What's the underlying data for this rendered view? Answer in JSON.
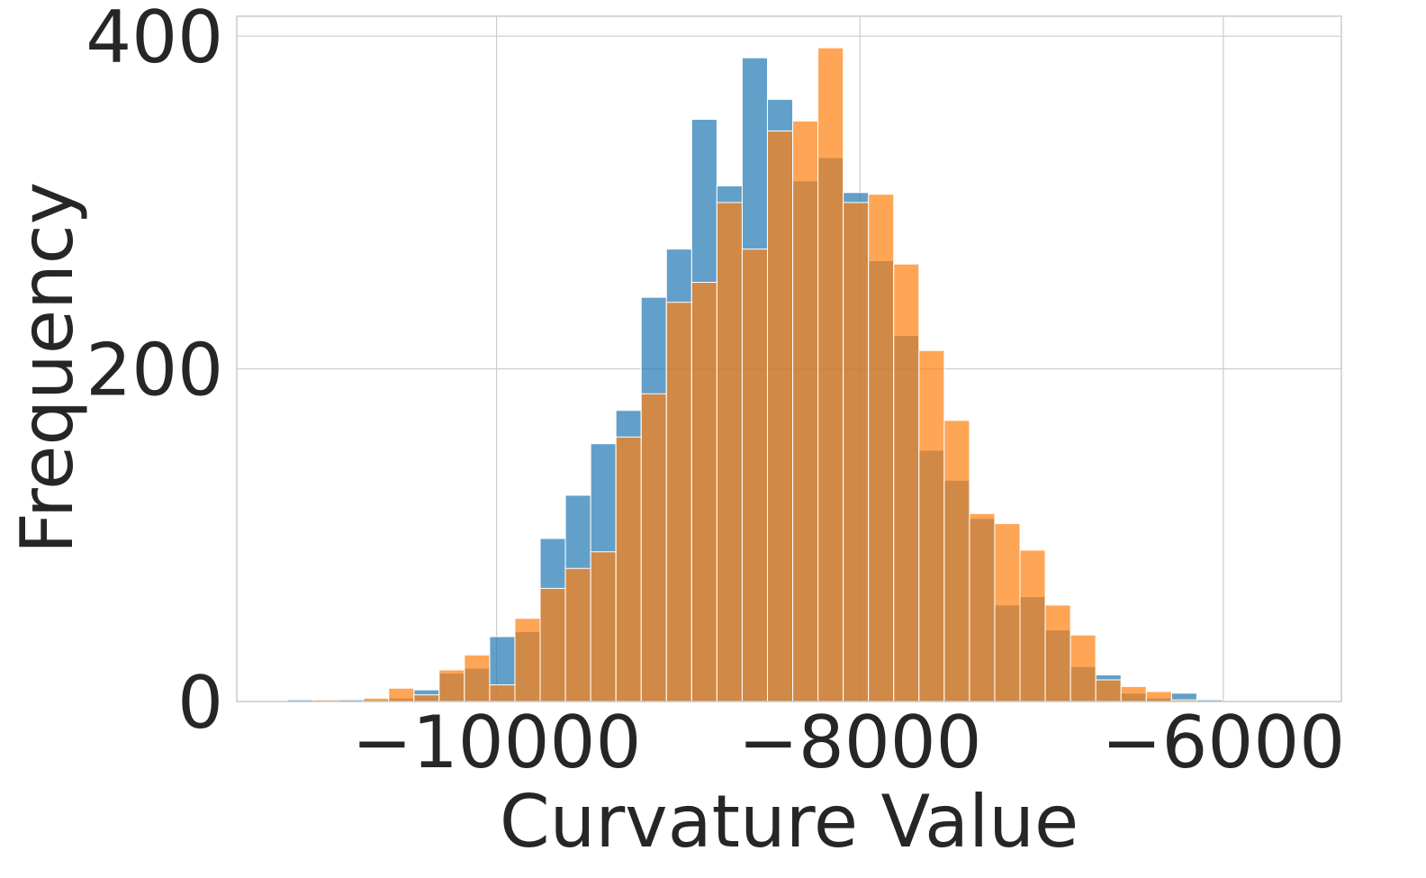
{
  "chart_data": {
    "type": "bar",
    "histogram": true,
    "xlabel": "Curvature Value",
    "ylabel": "Frequency",
    "xlim": [
      -11430,
      -5350
    ],
    "ylim": [
      0,
      412
    ],
    "xticks": [
      -10000,
      -8000,
      -6000
    ],
    "xtick_labels": [
      "−10000",
      "−8000",
      "−6000"
    ],
    "yticks": [
      0,
      200,
      400
    ],
    "ytick_labels": [
      "0",
      "200",
      "400"
    ],
    "grid": true,
    "legend": "none",
    "bin_edges": [
      -11150,
      -11011,
      -10872,
      -10733,
      -10594,
      -10455,
      -10316,
      -10177,
      -10038,
      -9899,
      -9760,
      -9621,
      -9482,
      -9343,
      -9204,
      -9065,
      -8926,
      -8787,
      -8648,
      -8509,
      -8370,
      -8231,
      -8092,
      -7953,
      -7814,
      -7675,
      -7536,
      -7397,
      -7258,
      -7119,
      -6980,
      -6841,
      -6702,
      -6563,
      -6424,
      -6285,
      -6146,
      -6007,
      -5868
    ],
    "series": [
      {
        "color": "#1f77b4",
        "values": [
          1,
          0,
          1,
          1,
          2,
          7,
          17,
          20,
          39,
          42,
          98,
          124,
          155,
          175,
          243,
          272,
          350,
          310,
          387,
          362,
          313,
          327,
          306,
          265,
          220,
          151,
          133,
          110,
          58,
          63,
          43,
          21,
          16,
          5,
          2,
          5,
          1,
          0
        ]
      },
      {
        "color": "#ff7f0e",
        "values": [
          0,
          1,
          0,
          2,
          8,
          4,
          19,
          28,
          10,
          50,
          68,
          80,
          90,
          159,
          185,
          240,
          252,
          300,
          272,
          343,
          349,
          393,
          300,
          305,
          263,
          211,
          169,
          113,
          107,
          91,
          58,
          40,
          13,
          9,
          6,
          1,
          0,
          0
        ]
      }
    ]
  }
}
